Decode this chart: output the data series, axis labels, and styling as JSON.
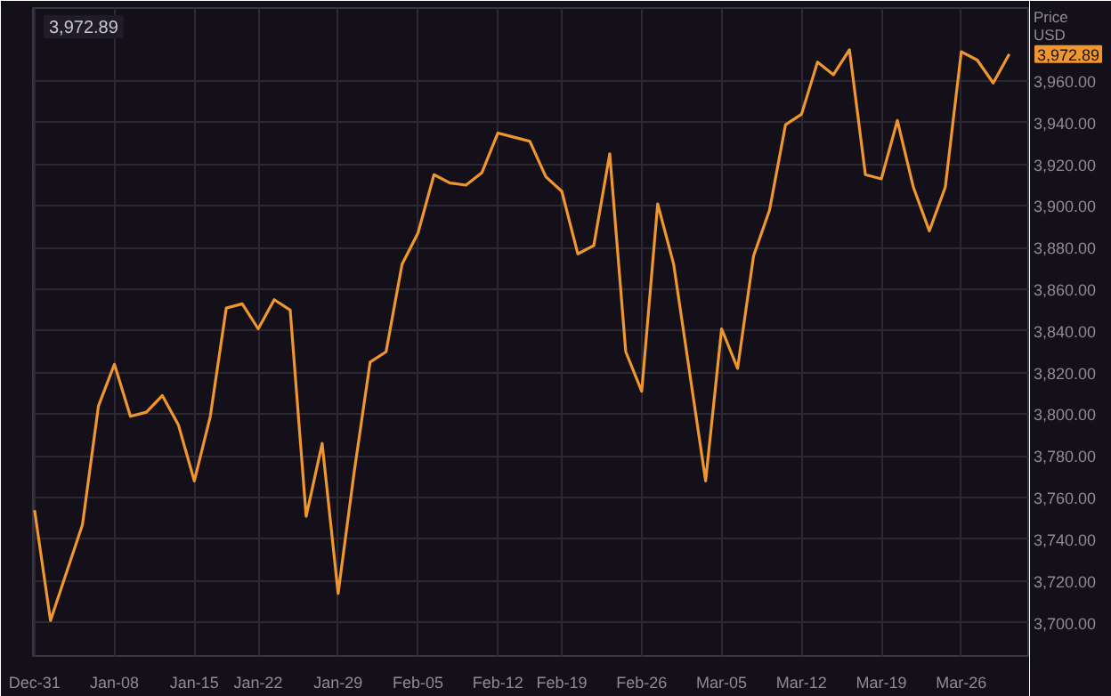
{
  "chart_data": {
    "type": "line",
    "ylabel": "Price\nUSD",
    "annotations": [
      "3,972.89",
      "3,972.89"
    ],
    "categories": [
      "Dec-31",
      null,
      null,
      null,
      null,
      "Jan-08",
      null,
      null,
      null,
      null,
      "Jan-15",
      null,
      null,
      null,
      "Jan-22",
      null,
      null,
      null,
      null,
      "Jan-29",
      null,
      null,
      null,
      null,
      "Feb-05",
      null,
      null,
      null,
      null,
      "Feb-12",
      null,
      null,
      null,
      "Feb-19",
      null,
      null,
      null,
      null,
      "Feb-26",
      null,
      null,
      null,
      null,
      "Mar-05",
      null,
      null,
      null,
      null,
      "Mar-12",
      null,
      null,
      null,
      null,
      "Mar-19",
      null,
      null,
      null,
      null,
      "Mar-26",
      null,
      null,
      null
    ],
    "series": [
      {
        "color": "#f0962e",
        "values": [
          3754,
          3701,
          3724,
          3747,
          3804,
          3824,
          3799,
          3801,
          3809,
          3795,
          3768,
          3799,
          3851,
          3853,
          3841,
          3855,
          3850,
          3751,
          3786,
          3714,
          3772,
          3825,
          3830,
          3872,
          3887,
          3915,
          3911,
          3910,
          3916,
          3935,
          3933,
          3931,
          3914,
          3907,
          3877,
          3881,
          3925,
          3830,
          3811,
          3901,
          3872,
          3820,
          3768,
          3841,
          3822,
          3876,
          3898,
          3939,
          3944,
          3969,
          3963,
          3975,
          3915,
          3913,
          3941,
          3909,
          3888,
          3909,
          3974,
          3970,
          3959,
          3972.89
        ]
      }
    ],
    "ylim": [
      3684,
      3995
    ],
    "yticks": [
      {
        "value": 3700,
        "label": "3,700.00"
      },
      {
        "value": 3720,
        "label": "3,720.00"
      },
      {
        "value": 3740,
        "label": "3,740.00"
      },
      {
        "value": 3760,
        "label": "3,760.00"
      },
      {
        "value": 3780,
        "label": "3,780.00"
      },
      {
        "value": 3800,
        "label": "3,800.00"
      },
      {
        "value": 3820,
        "label": "3,820.00"
      },
      {
        "value": 3840,
        "label": "3,840.00"
      },
      {
        "value": 3860,
        "label": "3,860.00"
      },
      {
        "value": 3880,
        "label": "3,880.00"
      },
      {
        "value": 3900,
        "label": "3,900.00"
      },
      {
        "value": 3920,
        "label": "3,920.00"
      },
      {
        "value": 3940,
        "label": "3,940.00"
      },
      {
        "value": 3960,
        "label": "3,960.00"
      }
    ],
    "grid": true,
    "marker": "none",
    "line_style": "solid"
  }
}
